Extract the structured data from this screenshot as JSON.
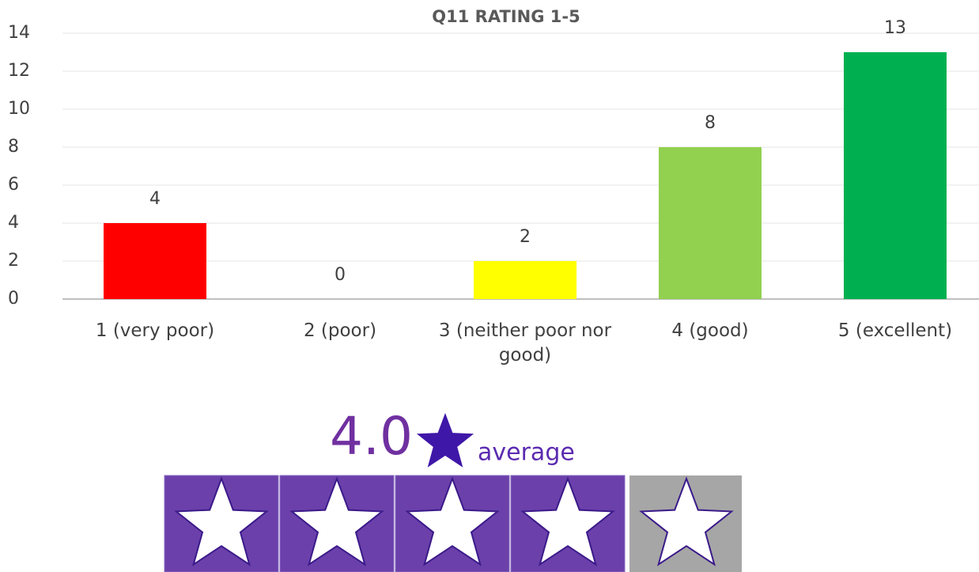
{
  "chart_data": {
    "type": "bar",
    "title": "Q11 RATING 1-5",
    "categories": [
      "1 (very poor)",
      "2 (poor)",
      "3 (neither poor nor good)",
      "4 (good)",
      "5 (excellent)"
    ],
    "values": [
      4,
      0,
      2,
      8,
      13
    ],
    "colors": [
      "#ff0000",
      null,
      "#ffff00",
      "#92d050",
      "#00b050"
    ],
    "ylim": [
      0,
      14
    ],
    "yticks": [
      0,
      2,
      4,
      6,
      8,
      10,
      12,
      14
    ],
    "grid": true
  },
  "rating": {
    "value": 4,
    "label": "4.0",
    "caption": "average",
    "stars": 5
  }
}
